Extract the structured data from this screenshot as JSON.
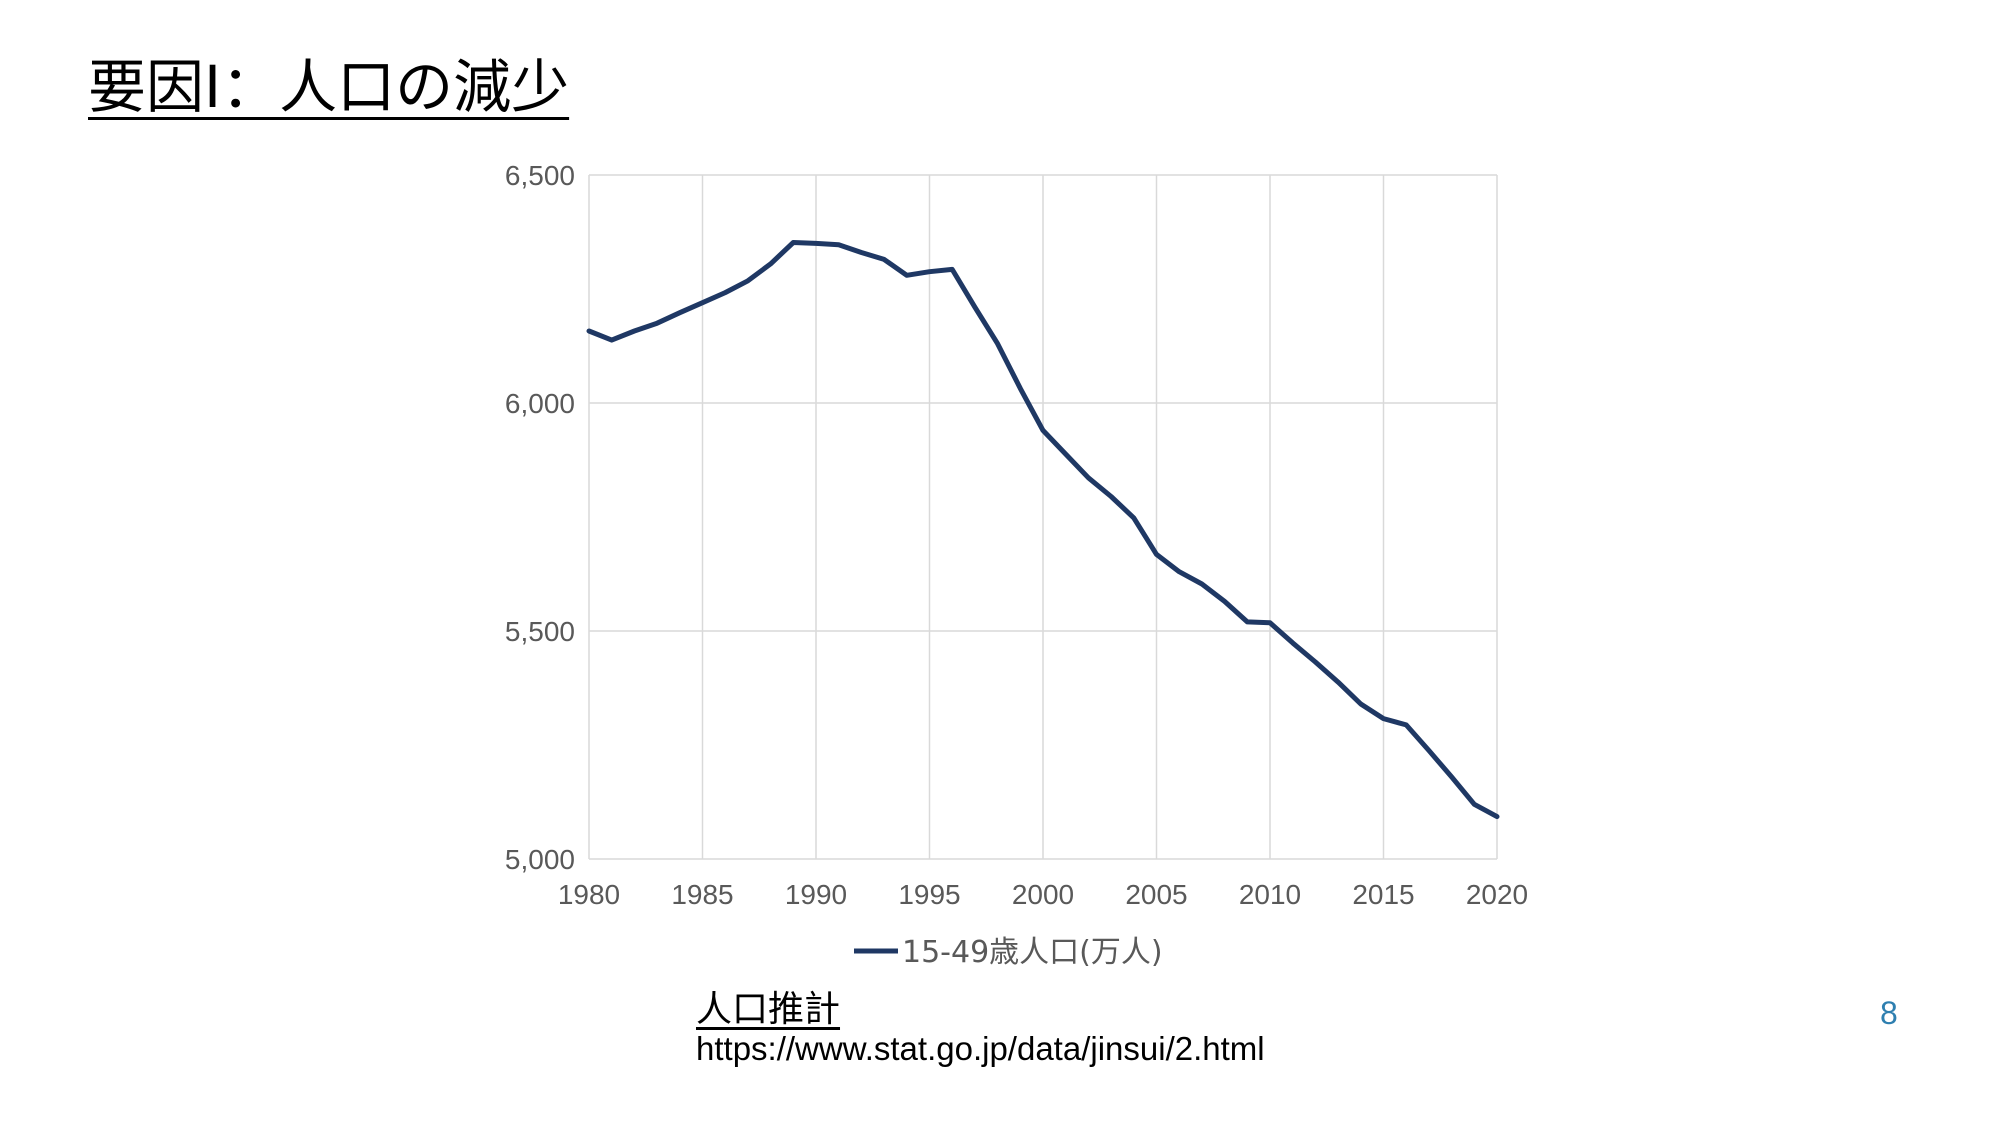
{
  "slide": {
    "title": "要因I：人口の減少",
    "source_title": "人口推計",
    "source_url": "https://www.stat.go.jp/data/jinsui/2.html",
    "page_number": "8"
  },
  "colors": {
    "series_line": "#1f3864",
    "grid": "#d9d9d9",
    "tick_text": "#595959",
    "page_number": "#2e7fb0"
  },
  "chart_data": {
    "type": "line",
    "title": "",
    "xlabel": "",
    "ylabel": "",
    "xlim": [
      1980,
      2020
    ],
    "ylim": [
      5000,
      6500
    ],
    "x_ticks": [
      1980,
      1985,
      1990,
      1995,
      2000,
      2005,
      2010,
      2015,
      2020
    ],
    "x_tick_labels": [
      "1980",
      "1985",
      "1990",
      "1995",
      "2000",
      "2005",
      "2010",
      "2015",
      "2020"
    ],
    "y_ticks": [
      5000,
      5500,
      6000,
      6500
    ],
    "y_tick_labels": [
      "5,000",
      "5,500",
      "6,000",
      "6,500"
    ],
    "grid": true,
    "legend_position": "bottom",
    "series": [
      {
        "name": "15-49歳人口(万人)",
        "x": [
          1980,
          1981,
          1982,
          1983,
          1984,
          1985,
          1986,
          1987,
          1988,
          1989,
          1990,
          1991,
          1992,
          1993,
          1994,
          1995,
          1996,
          1997,
          1998,
          1999,
          2000,
          2001,
          2002,
          2003,
          2004,
          2005,
          2006,
          2007,
          2008,
          2009,
          2010,
          2011,
          2012,
          2013,
          2014,
          2015,
          2016,
          2017,
          2018,
          2019,
          2020
        ],
        "values": [
          6158,
          6138,
          6158,
          6175,
          6198,
          6220,
          6242,
          6268,
          6305,
          6352,
          6350,
          6347,
          6330,
          6315,
          6280,
          6288,
          6293,
          6210,
          6130,
          6032,
          5940,
          5888,
          5836,
          5795,
          5748,
          5668,
          5630,
          5603,
          5565,
          5520,
          5518,
          5474,
          5432,
          5388,
          5340,
          5308,
          5294,
          5238,
          5180,
          5120,
          5093
        ]
      }
    ]
  }
}
